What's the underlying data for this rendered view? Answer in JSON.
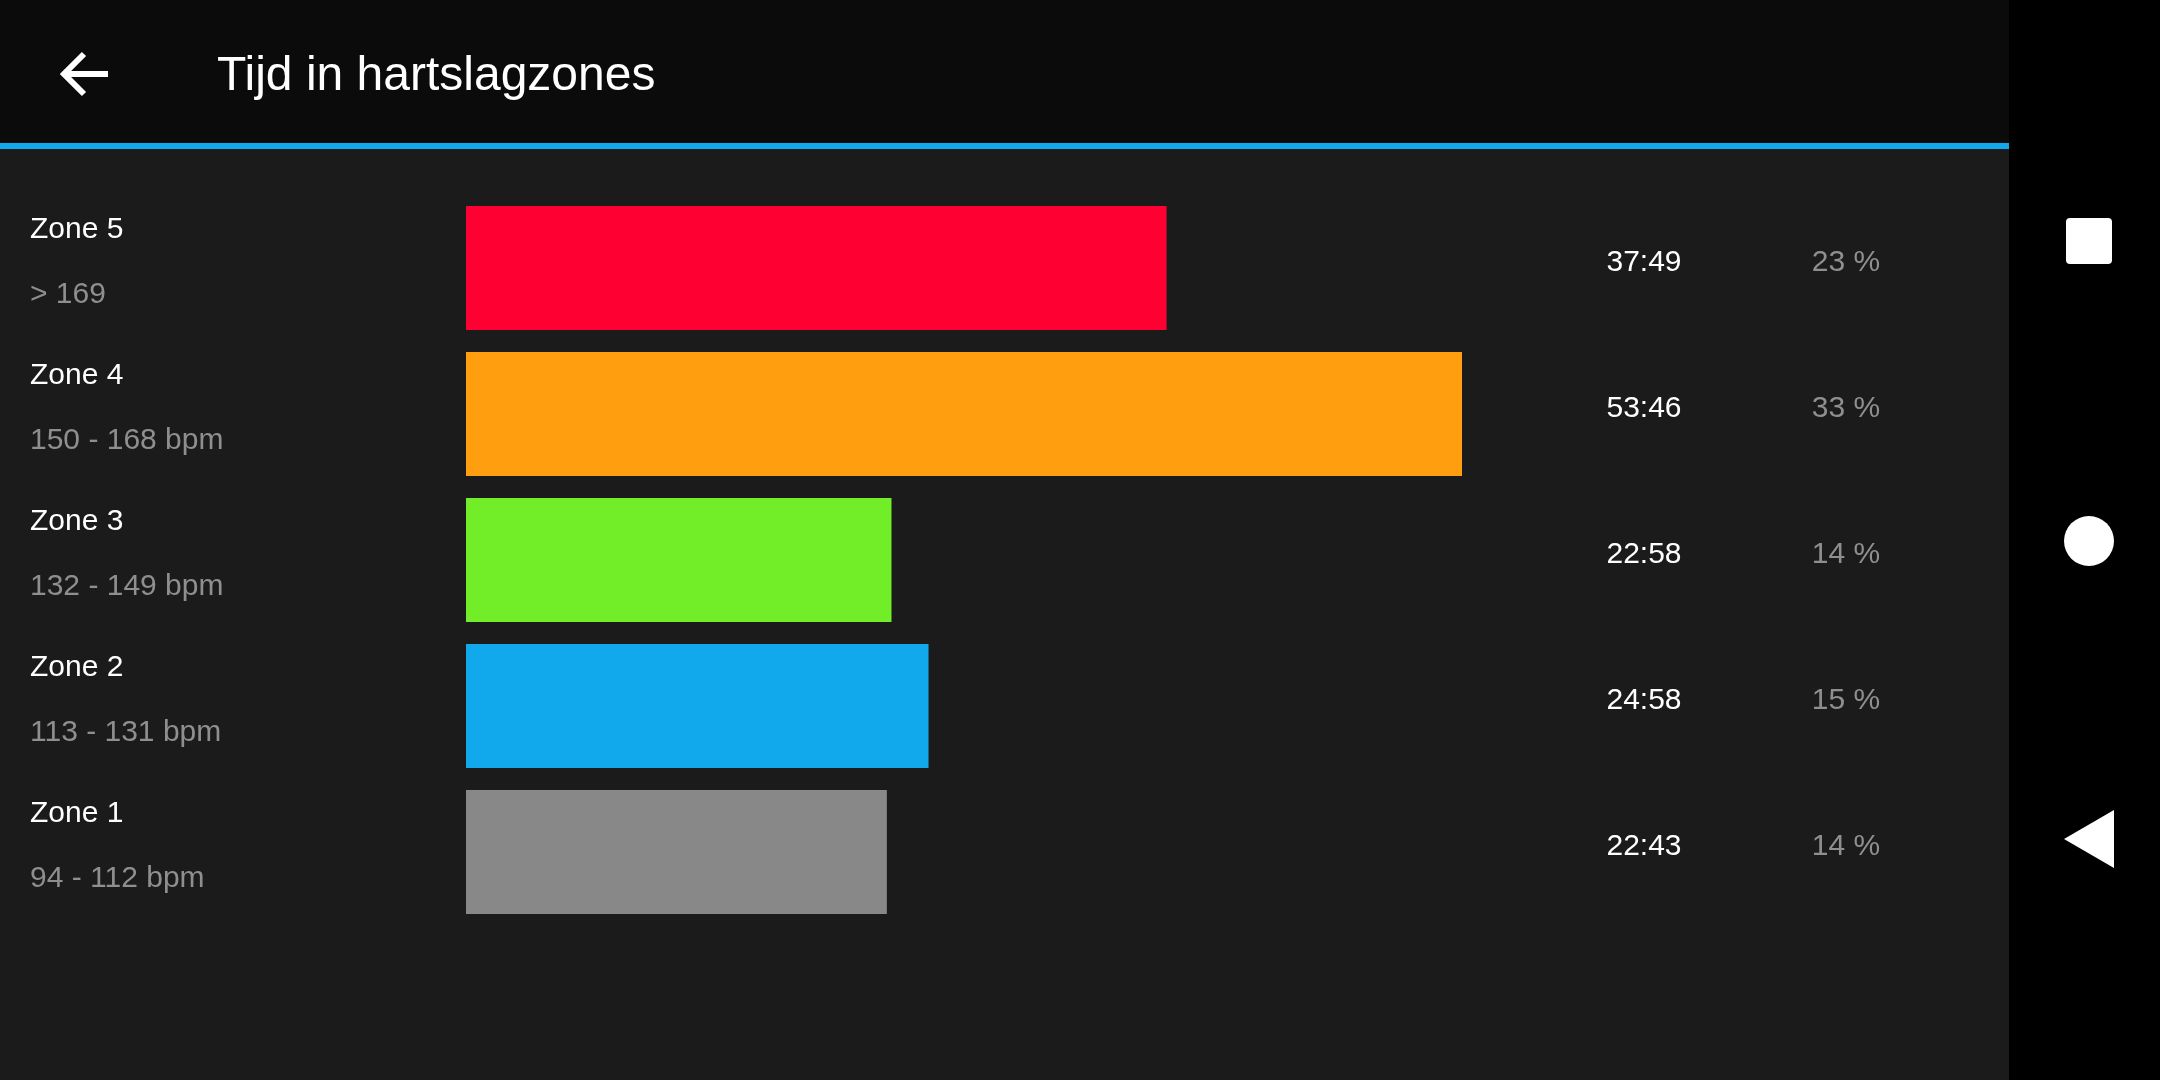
{
  "chart_data": {
    "type": "bar",
    "orientation": "horizontal",
    "title": "Tijd in hartslagzones",
    "categories": [
      "Zone 5\n> 169",
      "Zone 4\n150 - 168 bpm",
      "Zone 3\n132 - 149 bpm",
      "Zone 2\n113 - 131 bpm",
      "Zone 1\n94 - 112 bpm"
    ],
    "values": [
      37.82,
      53.77,
      22.97,
      24.97,
      22.72
    ],
    "colors": [
      "#ff0033",
      "#ff9f10",
      "#72ee28",
      "#12a9ec",
      "#888888"
    ],
    "value_labels": [
      "37:49",
      "53:46",
      "22:58",
      "24:58",
      "22:43"
    ],
    "annotations": [
      "23 %",
      "33 %",
      "14 %",
      "15 %",
      "14 %"
    ],
    "legend": false
  }
}
